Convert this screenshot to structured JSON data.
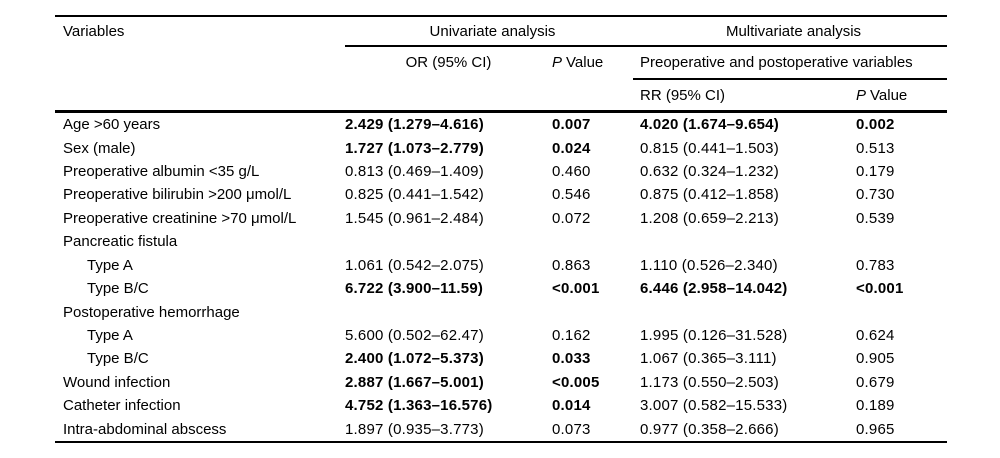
{
  "table": {
    "header": {
      "variables": "Variables",
      "univariate_group": "Univariate analysis",
      "multivariate_group": "Multivariate analysis",
      "or_ci": "OR (95% CI)",
      "p_italic": "P",
      "p_word": "Value",
      "preop_postop": "Preoperative and postoperative variables",
      "rr_ci": "RR (95% CI)"
    },
    "rows": [
      {
        "label": "Age >60 years",
        "indent": false,
        "or": "2.429 (1.279–4.616)",
        "or_bold": true,
        "p_uni": "0.007",
        "p_uni_bold": true,
        "rr": "4.020 (1.674–9.654)",
        "rr_bold": true,
        "p_multi": "0.002",
        "p_multi_bold": true
      },
      {
        "label": "Sex (male)",
        "indent": false,
        "or": "1.727 (1.073–2.779)",
        "or_bold": true,
        "p_uni": "0.024",
        "p_uni_bold": true,
        "rr": "0.815 (0.441–1.503)",
        "rr_bold": false,
        "p_multi": "0.513",
        "p_multi_bold": false
      },
      {
        "label": "Preoperative albumin <35 g/L",
        "indent": false,
        "or": "0.813 (0.469–1.409)",
        "or_bold": false,
        "p_uni": "0.460",
        "p_uni_bold": false,
        "rr": "0.632 (0.324–1.232)",
        "rr_bold": false,
        "p_multi": "0.179",
        "p_multi_bold": false
      },
      {
        "label": "Preoperative bilirubin >200 μmol/L",
        "indent": false,
        "or": "0.825 (0.441–1.542)",
        "or_bold": false,
        "p_uni": "0.546",
        "p_uni_bold": false,
        "rr": "0.875 (0.412–1.858)",
        "rr_bold": false,
        "p_multi": "0.730",
        "p_multi_bold": false
      },
      {
        "label": "Preoperative creatinine >70 μmol/L",
        "indent": false,
        "or": "1.545 (0.961–2.484)",
        "or_bold": false,
        "p_uni": "0.072",
        "p_uni_bold": false,
        "rr": "1.208 (0.659–2.213)",
        "rr_bold": false,
        "p_multi": "0.539",
        "p_multi_bold": false
      },
      {
        "label": "Pancreatic fistula",
        "indent": false,
        "or": "",
        "or_bold": false,
        "p_uni": "",
        "p_uni_bold": false,
        "rr": "",
        "rr_bold": false,
        "p_multi": "",
        "p_multi_bold": false
      },
      {
        "label": "Type A",
        "indent": true,
        "or": "1.061 (0.542–2.075)",
        "or_bold": false,
        "p_uni": "0.863",
        "p_uni_bold": false,
        "rr": "1.110 (0.526–2.340)",
        "rr_bold": false,
        "p_multi": "0.783",
        "p_multi_bold": false
      },
      {
        "label": "Type B/C",
        "indent": true,
        "or": "6.722 (3.900–11.59)",
        "or_bold": true,
        "p_uni": "<0.001",
        "p_uni_bold": true,
        "rr": "6.446 (2.958–14.042)",
        "rr_bold": true,
        "p_multi": "<0.001",
        "p_multi_bold": true
      },
      {
        "label": "Postoperative hemorrhage",
        "indent": false,
        "or": "",
        "or_bold": false,
        "p_uni": "",
        "p_uni_bold": false,
        "rr": "",
        "rr_bold": false,
        "p_multi": "",
        "p_multi_bold": false
      },
      {
        "label": "Type A",
        "indent": true,
        "or": "5.600 (0.502–62.47)",
        "or_bold": false,
        "p_uni": "0.162",
        "p_uni_bold": false,
        "rr": "1.995 (0.126–31.528)",
        "rr_bold": false,
        "p_multi": "0.624",
        "p_multi_bold": false
      },
      {
        "label": "Type B/C",
        "indent": true,
        "or": "2.400 (1.072–5.373)",
        "or_bold": true,
        "p_uni": "0.033",
        "p_uni_bold": true,
        "rr": "1.067 (0.365–3.111)",
        "rr_bold": false,
        "p_multi": "0.905",
        "p_multi_bold": false
      },
      {
        "label": "Wound infection",
        "indent": false,
        "or": "2.887 (1.667–5.001)",
        "or_bold": true,
        "p_uni": "<0.005",
        "p_uni_bold": true,
        "rr": "1.173 (0.550–2.503)",
        "rr_bold": false,
        "p_multi": "0.679",
        "p_multi_bold": false
      },
      {
        "label": "Catheter infection",
        "indent": false,
        "or": "4.752 (1.363–16.576)",
        "or_bold": true,
        "p_uni": "0.014",
        "p_uni_bold": true,
        "rr": "3.007 (0.582–15.533)",
        "rr_bold": false,
        "p_multi": "0.189",
        "p_multi_bold": false
      },
      {
        "label": "Intra-abdominal abscess",
        "indent": false,
        "or": "1.897 (0.935–3.773)",
        "or_bold": false,
        "p_uni": "0.073",
        "p_uni_bold": false,
        "rr": "0.977 (0.358–2.666)",
        "rr_bold": false,
        "p_multi": "0.965",
        "p_multi_bold": false
      }
    ]
  }
}
